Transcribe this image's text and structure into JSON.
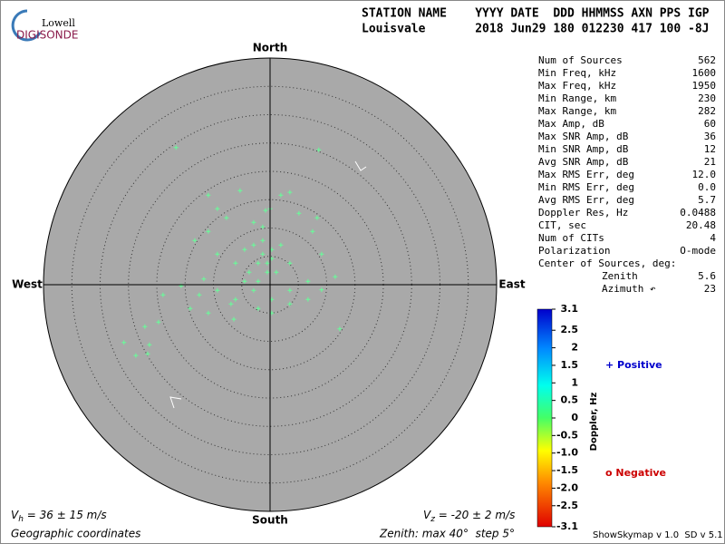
{
  "logo": {
    "top": "Lowell",
    "bottom": "DIGISONDE"
  },
  "header": {
    "line1": "STATION NAME    YYYY DATE  DDD HHMMSS AXN PPS IGP",
    "line2": "Louisvale       2018 Jun29 180 012230 417 100 -8J"
  },
  "stats": {
    "rows": [
      [
        "Num of Sources",
        "562"
      ],
      [
        "Min Freq, kHz",
        "1600"
      ],
      [
        "Max Freq, kHz",
        "1950"
      ],
      [
        "Min Range, km",
        "230"
      ],
      [
        "Max Range, km",
        "282"
      ],
      [
        "Max Amp, dB",
        "60"
      ],
      [
        "Max SNR Amp, dB",
        "36"
      ],
      [
        "Min SNR Amp, dB",
        "12"
      ],
      [
        "Avg SNR Amp, dB",
        "21"
      ],
      [
        "Max RMS Err, deg",
        "12.0"
      ],
      [
        "Min RMS Err, deg",
        "0.0"
      ],
      [
        "Avg RMS Err, deg",
        "5.7"
      ],
      [
        "Doppler Res, Hz",
        "0.0488"
      ],
      [
        "CIT, sec",
        "20.48"
      ],
      [
        "Num of CITs",
        "4"
      ],
      [
        "Polarization",
        "O-mode"
      ]
    ],
    "center_title": "Center of Sources, deg:",
    "center_rows": [
      [
        "Zenith",
        "5.6"
      ],
      [
        "Azimuth ↶",
        "23"
      ]
    ]
  },
  "chart_data": {
    "type": "scatter",
    "directions": {
      "north": "North",
      "south": "South",
      "east": "East",
      "west": "West"
    },
    "zenith_max": 40,
    "zenith_step": 5,
    "xlim": [
      -40,
      40
    ],
    "ylim": [
      -40,
      40
    ],
    "x": [
      -16.6,
      8.6,
      0,
      -2.9,
      -1.3,
      0.3,
      -2.1,
      -4.5,
      1.9,
      3.5,
      -0.5,
      -3.7,
      -6.1,
      -9.3,
      -10.9,
      -13.3,
      -7.7,
      -5.3,
      1.9,
      5.1,
      7.5,
      9.1,
      11.5,
      6.7,
      3.5,
      0.3,
      -2.9,
      -6.1,
      -9.3,
      -12.5,
      -15.7,
      -18.9,
      -14.1,
      -10.9,
      -6.9,
      -2.1,
      0.3,
      3.5,
      6.7,
      9.1,
      12.3,
      -19.7,
      -22.1,
      -21.3,
      -25.8,
      -23.7,
      -21.6,
      -6.4,
      -11.7,
      -1.3,
      0.3,
      -0.5,
      1.1,
      -2.1,
      -4.5,
      -1.3,
      -2.9,
      -10.9,
      3.5,
      8.3,
      -9.3,
      -0.8
    ],
    "series": [
      {
        "name": "Positive",
        "color": "#66ff99",
        "values": [
          24.2,
          23.8,
          13.4,
          7.0,
          5.4,
          4.6,
          3.8,
          6.2,
          7.0,
          3.8,
          2.2,
          2.2,
          3.8,
          5.4,
          9.4,
          7.8,
          11.8,
          16.6,
          15.8,
          12.6,
          9.4,
          5.4,
          1.4,
          0.6,
          -1.0,
          -2.6,
          -1.0,
          -2.6,
          -1.0,
          -1.8,
          -0.2,
          -1.8,
          -4.2,
          -5.0,
          -3.4,
          -4.2,
          -5.0,
          -3.4,
          -2.6,
          -0.9,
          -7.8,
          -6.6,
          -7.4,
          -10.6,
          -10.2,
          -12.5,
          -12.2,
          -6.1,
          1.0,
          7.8,
          6.2,
          3.8,
          2.2,
          0.6,
          0.6,
          10.2,
          11.0,
          15.8,
          16.3,
          11.8,
          13.4,
          13.1
        ]
      }
    ]
  },
  "colorbar": {
    "title": "Doppler, Hz",
    "lim": [
      -3.1,
      3.1
    ],
    "ticks": [
      3.1,
      2.5,
      2,
      1.5,
      1,
      0.5,
      0,
      -0.5,
      {
        "value": -1,
        "label": "-1.0"
      },
      -1.5,
      {
        "value": -2,
        "label": "-2.0"
      },
      -2.5,
      -3.1
    ]
  },
  "legend": {
    "positive": "+ Positive",
    "negative": "o Negative"
  },
  "footer": {
    "vh": {
      "symbol": "V",
      "sub": "h",
      "text": " = 36 ± 15 m/s"
    },
    "vz": {
      "symbol": "V",
      "sub": "z",
      "text": " = -20 ± 2 m/s"
    },
    "coords": "Geographic coordinates",
    "zenith": "Zenith: max 40°  step 5°",
    "version": "ShowSkymap v 1.0  SD v 5.1"
  }
}
